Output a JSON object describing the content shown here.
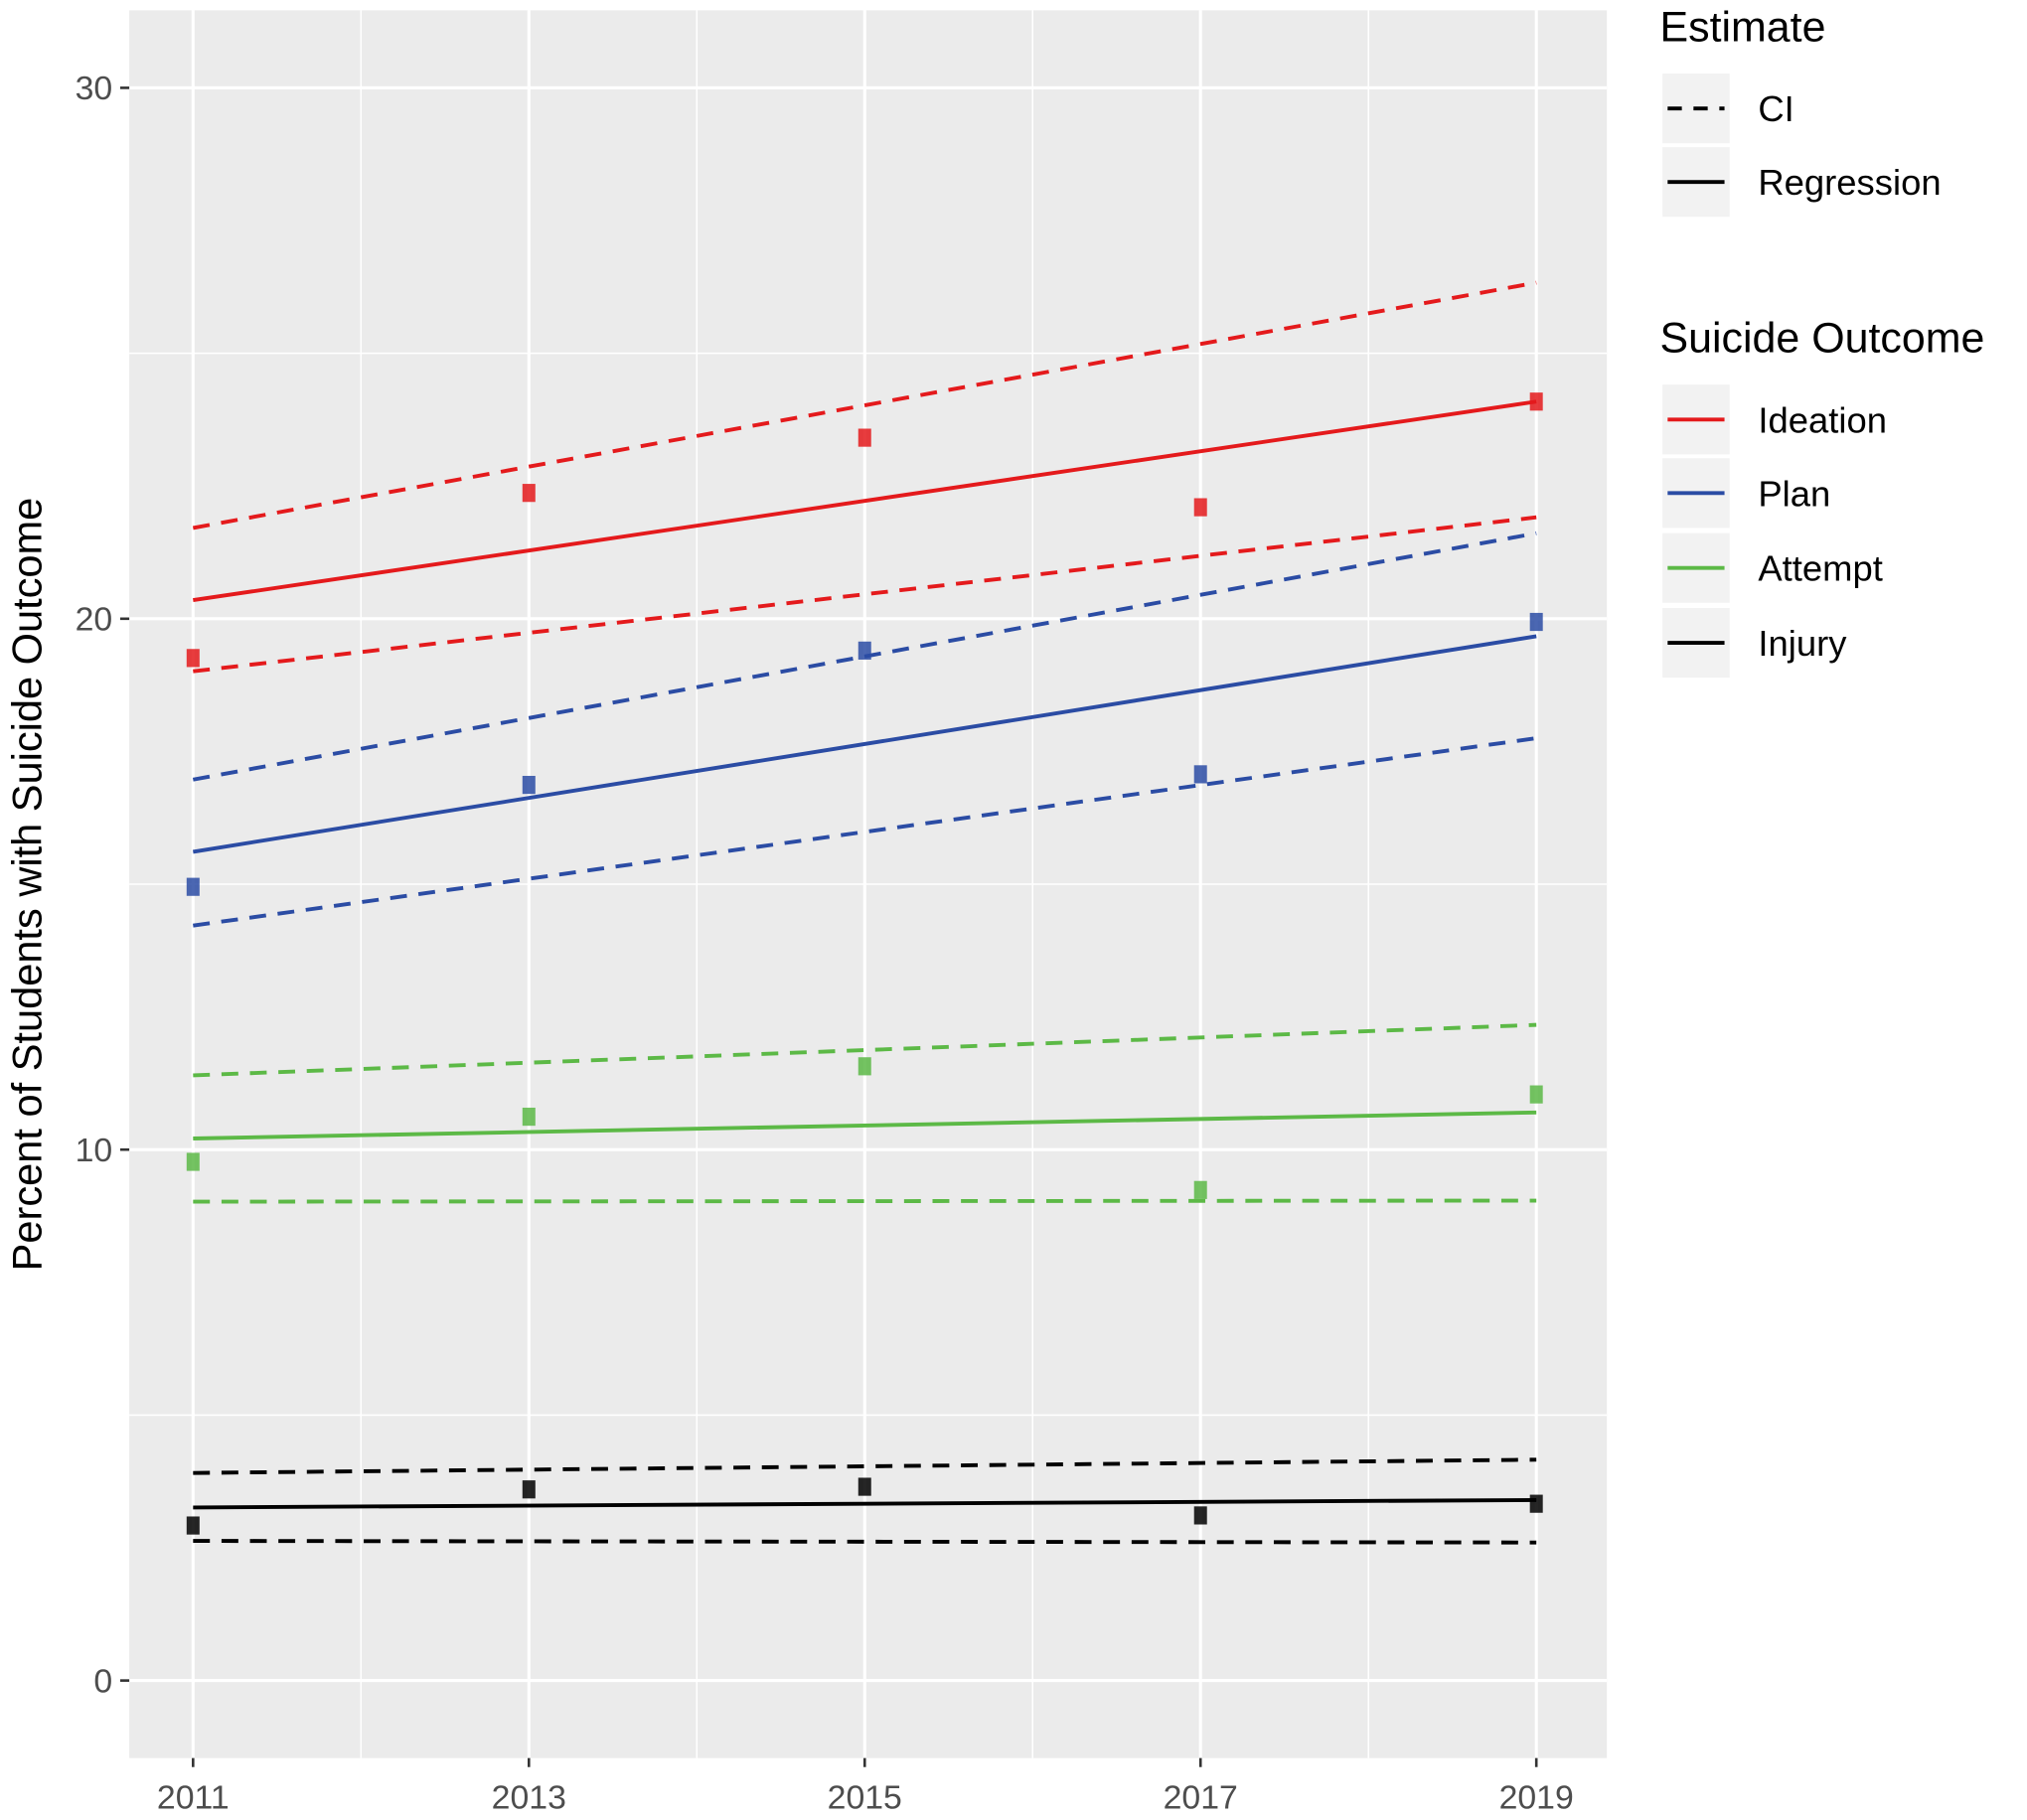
{
  "chart_data": {
    "type": "scatter",
    "title": "",
    "xlabel": "",
    "ylabel": "Percent of Students with Suicide Outcome",
    "xlim": [
      2010.62,
      2019.42
    ],
    "ylim": [
      -1.46,
      31.46
    ],
    "x_ticks": [
      2011,
      2013,
      2015,
      2017,
      2019
    ],
    "x_tick_labels": [
      "2011",
      "2013",
      "2015",
      "2017",
      "2019"
    ],
    "y_ticks": [
      0,
      10,
      20,
      30
    ],
    "y_tick_labels": [
      "0",
      "10",
      "20",
      "30"
    ],
    "grid": true,
    "legend_placement": "right",
    "legends": [
      {
        "title": "Estimate",
        "items": [
          {
            "label": "CI",
            "linetype": "dashed"
          },
          {
            "label": "Regression",
            "linetype": "solid"
          }
        ]
      },
      {
        "title": "Suicide Outcome",
        "items": [
          {
            "label": "Ideation",
            "color": "#e41a1c"
          },
          {
            "label": "Plan",
            "color": "#2b4ca4"
          },
          {
            "label": "Attempt",
            "color": "#5cb946"
          },
          {
            "label": "Injury",
            "color": "#000000"
          }
        ]
      }
    ],
    "x": [
      2011,
      2013,
      2015,
      2017,
      2019
    ],
    "series": [
      {
        "name": "Ideation",
        "color": "#e41a1c",
        "values": [
          19.26,
          22.37,
          23.41,
          22.1,
          24.09
        ],
        "regression": [
          [
            2011,
            20.35
          ],
          [
            2019,
            24.09
          ]
        ],
        "ci_upper": [
          [
            2011,
            21.71
          ],
          [
            2019,
            26.33
          ]
        ],
        "ci_lower": [
          [
            2011,
            19.01
          ],
          [
            2019,
            21.91
          ]
        ]
      },
      {
        "name": "Plan",
        "color": "#2b4ca4",
        "values": [
          14.95,
          16.87,
          19.4,
          17.07,
          19.94
        ],
        "regression": [
          [
            2011,
            15.61
          ],
          [
            2019,
            19.67
          ]
        ],
        "ci_upper": [
          [
            2011,
            16.97
          ],
          [
            2019,
            21.61
          ]
        ],
        "ci_lower": [
          [
            2011,
            14.22
          ],
          [
            2019,
            17.75
          ]
        ]
      },
      {
        "name": "Attempt",
        "color": "#5cb946",
        "values": [
          9.77,
          10.62,
          11.57,
          9.24,
          11.04
        ],
        "regression": [
          [
            2011,
            10.21
          ],
          [
            2019,
            10.7
          ]
        ],
        "ci_upper": [
          [
            2011,
            11.4
          ],
          [
            2019,
            12.35
          ]
        ],
        "ci_lower": [
          [
            2011,
            9.02
          ],
          [
            2019,
            9.04
          ]
        ]
      },
      {
        "name": "Injury",
        "color": "#000000",
        "values": [
          2.92,
          3.6,
          3.65,
          3.11,
          3.33
        ],
        "regression": [
          [
            2011,
            3.26
          ],
          [
            2019,
            3.4
          ]
        ],
        "ci_upper": [
          [
            2011,
            3.91
          ],
          [
            2019,
            4.16
          ]
        ],
        "ci_lower": [
          [
            2011,
            2.63
          ],
          [
            2019,
            2.6
          ]
        ]
      }
    ]
  }
}
